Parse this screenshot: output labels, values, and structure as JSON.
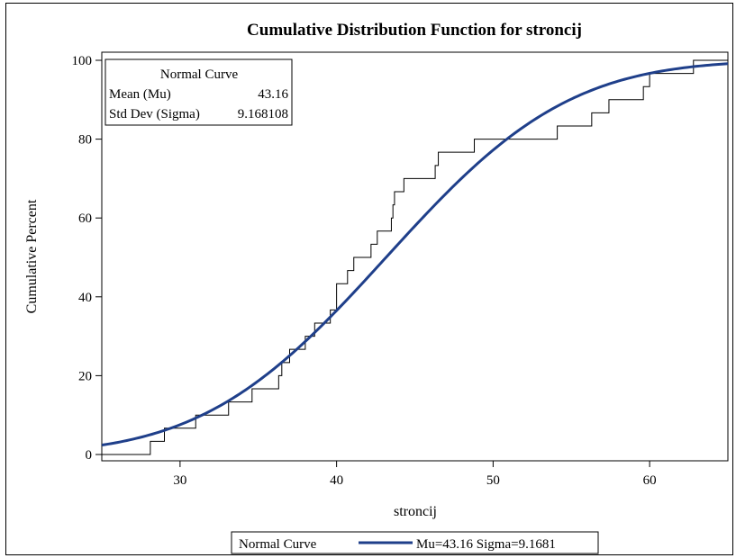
{
  "chart_data": {
    "type": "line",
    "title": "Cumulative Distribution Function for stroncij",
    "xlabel": "stroncij",
    "ylabel": "Cumulative Percent",
    "xlim": [
      25,
      65
    ],
    "ylim": [
      0,
      100
    ],
    "xticks": [
      30,
      40,
      50,
      60
    ],
    "yticks": [
      0,
      20,
      40,
      60,
      80,
      100
    ],
    "grid": false,
    "series": [
      {
        "kind": "step",
        "x": [
          25,
          28.1,
          29.0,
          31.0,
          33.1,
          34.6,
          36.3,
          36.5,
          37.0,
          37.5,
          38.0,
          38.6,
          39.6,
          40.0,
          40.4,
          40.7,
          41.1,
          42.2,
          42.6,
          43.5,
          43.6,
          43.7,
          43.9,
          44.3,
          46.3,
          46.5,
          48.8,
          54.1,
          56.3,
          57.4,
          59.6,
          60.0,
          62.8,
          65.0
        ],
        "y": [
          0,
          3.33,
          6.67,
          10.0,
          13.33,
          16.67,
          20.0,
          23.33,
          26.67,
          26.67,
          30.0,
          33.33,
          36.67,
          43.33,
          43.33,
          46.67,
          50.0,
          53.33,
          56.67,
          60.0,
          63.33,
          66.67,
          66.67,
          70.0,
          73.33,
          76.67,
          80.0,
          83.33,
          86.67,
          90.0,
          93.33,
          96.67,
          100.0,
          100.0
        ]
      },
      {
        "name": "Normal Curve",
        "kind": "normal-cdf",
        "mu": 43.16,
        "sigma": 9.1681,
        "color": "#1f3f8a"
      }
    ],
    "inset": {
      "title": "Normal Curve",
      "rows": [
        {
          "label": "Mean (Mu)",
          "value": "43.16"
        },
        {
          "label": "Std Dev (Sigma)",
          "value": "9.168108"
        }
      ]
    },
    "legend": {
      "placement": "bottom",
      "title": "Normal Curve",
      "entry": "Mu=43.16 Sigma=9.1681"
    }
  }
}
